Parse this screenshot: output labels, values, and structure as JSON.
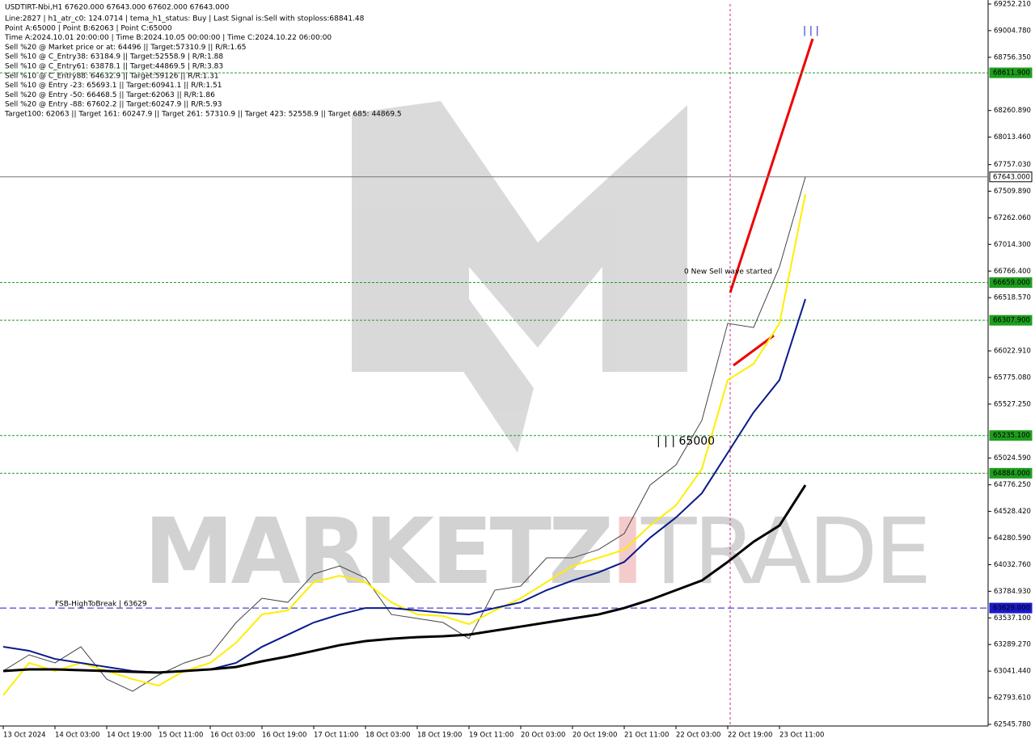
{
  "chart_data": {
    "type": "line",
    "title": "USDTIRT-Nbi,H1  67620.000 67643.000 67602.000 67643.000",
    "info_lines": [
      "Line:2827 | h1_atr_c0: 124.0714 | tema_h1_status: Buy | Last Signal is:Sell with stoploss:68841.48",
      "Point A:65000 | Point B:62063 | Point C:65000",
      "Time A:2024.10.01 20:00:00 | Time B:2024.10.05 00:00:00 | Time C:2024.10.22 06:00:00",
      "Sell %20 @ Market price or at: 64496 || Target:57310.9 || R/R:1.65",
      "Sell %10 @ C_Entry38: 63184.9 || Target:52558.9 | R/R:1.88",
      "Sell %10 @ C_Entry61: 63878.1 || Target:44869.5 | R/R:3.83",
      "Sell %10 @ C_Entry88: 64632.9 || Target:59126 || R/R:1.31",
      "Sell %10 @ Entry -23: 65693.1 || Target:60941.1 || R/R:1.51",
      "Sell %20 @ Entry -50: 66468.5 || Target:62063 || R/R:1.86",
      "Sell %20 @ Entry -88: 67602.2 || Target:60247.9 || R/R:5.93",
      "Target100: 62063 || Target 161: 60247.9 || Target 261: 57310.9 || Target 423: 52558.9 || Target 685: 44869.5"
    ],
    "annotations": [
      "0 New Sell wave started",
      "| | | 65000",
      "| | |",
      "FSB-HighToBreak | 63629"
    ],
    "watermark": [
      "MARKETZ",
      "I",
      "TRADE"
    ],
    "categories": [
      "13 Oct 2024",
      null,
      "14 Oct 03:00",
      null,
      "14 Oct 19:00",
      null,
      "15 Oct 11:00",
      null,
      "16 Oct 03:00",
      null,
      "16 Oct 19:00",
      null,
      "17 Oct 11:00",
      null,
      "18 Oct 03:00",
      null,
      "18 Oct 19:00",
      null,
      "19 Oct 11:00",
      null,
      "20 Oct 03:00",
      null,
      "20 Oct 19:00",
      null,
      "21 Oct 11:00",
      null,
      "22 Oct 03:00",
      null,
      "22 Oct 19:00",
      null,
      "23 Oct 11:00",
      null
    ],
    "series": [
      {
        "color": "#444444",
        "values": [
          63043,
          63193,
          63118,
          63268,
          62967,
          62854,
          63005,
          63118,
          63193,
          63494,
          63720,
          63682,
          63946,
          64021,
          63908,
          63569,
          63532,
          63494,
          63344,
          63795,
          63833,
          64096,
          64096,
          64172,
          64322,
          64774,
          64962,
          65376,
          66279,
          66241,
          66806,
          67643
        ]
      },
      {
        "color": "#ffee00",
        "values": [
          62817,
          63118,
          63043,
          63118,
          63043,
          62967,
          62907,
          63043,
          63118,
          63306,
          63569,
          63607,
          63870,
          63930,
          63870,
          63682,
          63569,
          63554,
          63479,
          63607,
          63720,
          63870,
          64021,
          64096,
          64172,
          64397,
          64585,
          64924,
          65752,
          65902,
          66279,
          67483
        ]
      },
      {
        "color": "#0a1a8c",
        "values": [
          63268,
          63231,
          63155,
          63118,
          63080,
          63043,
          63028,
          63043,
          63058,
          63118,
          63268,
          63381,
          63494,
          63569,
          63629,
          63629,
          63607,
          63584,
          63569,
          63629,
          63682,
          63795,
          63885,
          63960,
          64058,
          64284,
          64472,
          64698,
          65074,
          65451,
          65752,
          66505
        ]
      },
      {
        "color": "#000000",
        "values": [
          63043,
          63058,
          63058,
          63050,
          63043,
          63035,
          63028,
          63043,
          63058,
          63080,
          63133,
          63178,
          63230,
          63283,
          63321,
          63343,
          63358,
          63366,
          63381,
          63419,
          63456,
          63494,
          63532,
          63569,
          63629,
          63705,
          63795,
          63885,
          64058,
          64246,
          64397,
          64773
        ]
      }
    ],
    "levels": [
      {
        "value": 68611.9,
        "label": "68611.900",
        "color": "#1e9e1e",
        "style": "dotted"
      },
      {
        "value": 67643,
        "label": "67643.000",
        "color": "#777777",
        "style": "solid"
      },
      {
        "value": 66659,
        "label": "66659.000",
        "color": "#1e9e1e",
        "style": "dotted"
      },
      {
        "value": 66307.9,
        "label": "66307.900",
        "color": "#1e9e1e",
        "style": "dotted"
      },
      {
        "value": 65235.1,
        "label": "65235.100",
        "color": "#1e9e1e",
        "style": "dotted"
      },
      {
        "value": 64884,
        "label": "64884.000",
        "color": "#1e9e1e",
        "style": "dotted"
      },
      {
        "value": 63629,
        "label": "63629.000",
        "color": "#1a1acc",
        "style": "dashed"
      }
    ],
    "ylim": [
      62545.78,
      69252.21
    ],
    "yticks": [
      {
        "value": 69252.21,
        "label": "69252.210"
      },
      {
        "value": 69004.78,
        "label": "69004.780"
      },
      {
        "value": 68756.35,
        "label": "68756.350"
      },
      {
        "value": 68260.89,
        "label": "68260.890"
      },
      {
        "value": 68013.46,
        "label": "68013.460"
      },
      {
        "value": 67757.03,
        "label": "67757.030"
      },
      {
        "value": 67509.89,
        "label": "67509.890"
      },
      {
        "value": 67262.06,
        "label": "67262.060"
      },
      {
        "value": 67014.3,
        "label": "67014.300"
      },
      {
        "value": 66766.4,
        "label": "66766.400"
      },
      {
        "value": 66518.57,
        "label": "66518.570"
      },
      {
        "value": 66022.91,
        "label": "66022.910"
      },
      {
        "value": 65775.08,
        "label": "65775.080"
      },
      {
        "value": 65527.25,
        "label": "65527.250"
      },
      {
        "value": 65024.59,
        "label": "65024.590"
      },
      {
        "value": 64776.25,
        "label": "64776.250"
      },
      {
        "value": 64528.42,
        "label": "64528.420"
      },
      {
        "value": 64280.59,
        "label": "64280.590"
      },
      {
        "value": 64032.76,
        "label": "64032.760"
      },
      {
        "value": 63784.93,
        "label": "63784.930"
      },
      {
        "value": 63537.1,
        "label": "63537.100"
      },
      {
        "value": 63289.27,
        "label": "63289.270"
      },
      {
        "value": 63041.44,
        "label": "63041.440"
      },
      {
        "value": 62793.61,
        "label": "62793.610"
      },
      {
        "value": 62545.78,
        "label": "62545.780"
      }
    ]
  }
}
